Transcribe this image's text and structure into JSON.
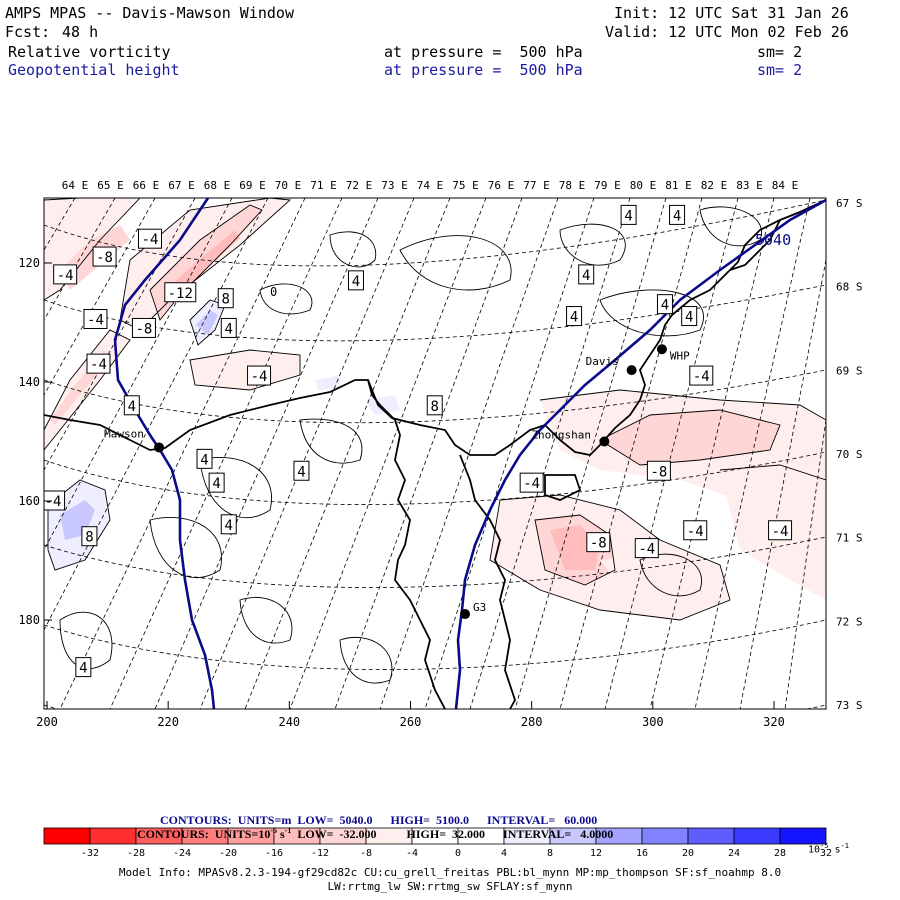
{
  "header": {
    "title": "AMPS MPAS -- Davis-Mawson Window",
    "fcst_label": "Fcst:",
    "fcst_value": "48 h",
    "init": "Init: 12 UTC Sat 31 Jan 26",
    "valid": "Valid: 12 UTC Mon 02 Feb 26",
    "field1": "Relative vorticity",
    "field2": "Geopotential height",
    "pressure1": "at pressure =  500 hPa",
    "pressure2": "at pressure =  500 hPa",
    "sm1": "sm= 2",
    "sm2": "sm= 2"
  },
  "map": {
    "x_ticks": [
      "200",
      "220",
      "240",
      "260",
      "280",
      "300",
      "320"
    ],
    "x_tick_values": [
      200,
      220,
      240,
      260,
      280,
      300,
      320
    ],
    "y_ticks": [
      "120",
      "140",
      "160",
      "180"
    ],
    "y_tick_values": [
      120,
      140,
      160,
      180
    ],
    "lon_labels": [
      "64 E",
      "65 E",
      "66 E",
      "67 E",
      "68 E",
      "69 E",
      "70 E",
      "71 E",
      "72 E",
      "73 E",
      "74 E",
      "75 E",
      "76 E",
      "77 E",
      "78 E",
      "79 E",
      "80 E",
      "81 E",
      "82 E",
      "83 E",
      "84 E"
    ],
    "lat_labels": [
      "67 S",
      "68 S",
      "69 S",
      "70 S",
      "71 S",
      "72 S",
      "73 S"
    ],
    "stations": [
      {
        "name": "Mawson",
        "x": 218.5,
        "y": 151
      },
      {
        "name": "Davis",
        "x": 296.5,
        "y": 138
      },
      {
        "name": "WHP",
        "x": 301.5,
        "y": 134.5
      },
      {
        "name": "Zhongshan",
        "x": 292,
        "y": 150
      },
      {
        "name": "G3",
        "x": 269,
        "y": 179
      }
    ],
    "height_label": "5040",
    "vorticity_labels": [
      {
        "t": "-4",
        "x": 203,
        "y": 122
      },
      {
        "t": "-8",
        "x": 209.5,
        "y": 119
      },
      {
        "t": "-4",
        "x": 217,
        "y": 116
      },
      {
        "t": "-12",
        "x": 222,
        "y": 125
      },
      {
        "t": "8",
        "x": 229.5,
        "y": 126
      },
      {
        "t": "-4",
        "x": 208,
        "y": 129.5
      },
      {
        "t": "-8",
        "x": 216,
        "y": 131
      },
      {
        "t": "4",
        "x": 230,
        "y": 131
      },
      {
        "t": "-4",
        "x": 208.5,
        "y": 137
      },
      {
        "t": "-4",
        "x": 235,
        "y": 139
      },
      {
        "t": "4",
        "x": 214,
        "y": 144
      },
      {
        "t": "8",
        "x": 264,
        "y": 144
      },
      {
        "t": "4",
        "x": 226,
        "y": 153
      },
      {
        "t": "4",
        "x": 228,
        "y": 157
      },
      {
        "t": "4",
        "x": 242,
        "y": 155
      },
      {
        "t": "4",
        "x": 230,
        "y": 164
      },
      {
        "t": "-4",
        "x": 201,
        "y": 160
      },
      {
        "t": "8",
        "x": 207,
        "y": 166
      },
      {
        "t": "4",
        "x": 206,
        "y": 188
      },
      {
        "t": "4",
        "x": 251,
        "y": 123
      },
      {
        "t": "-4",
        "x": 280,
        "y": 157
      },
      {
        "t": "4",
        "x": 287,
        "y": 129
      },
      {
        "t": "4",
        "x": 289,
        "y": 122
      },
      {
        "t": "4",
        "x": 296,
        "y": 112
      },
      {
        "t": "4",
        "x": 304,
        "y": 112
      },
      {
        "t": "4",
        "x": 302,
        "y": 127
      },
      {
        "t": "4",
        "x": 306,
        "y": 129
      },
      {
        "t": "-4",
        "x": 308,
        "y": 139
      },
      {
        "t": "-8",
        "x": 301,
        "y": 155
      },
      {
        "t": "-4",
        "x": 307,
        "y": 165
      },
      {
        "t": "-4",
        "x": 299,
        "y": 168
      },
      {
        "t": "-8",
        "x": 291,
        "y": 167
      },
      {
        "t": "-4",
        "x": 321,
        "y": 165
      }
    ]
  },
  "footer": {
    "line1_label": "CONTOURS:",
    "line1_units": "UNITS=m",
    "line1_low": "LOW=  5040.0",
    "line1_high": "HIGH=  5100.0",
    "line1_interval": "INTERVAL=   60.000",
    "line2_label": "CONTOURS:",
    "line2_units": "UNITS=10",
    "line2_units_exp": "-5",
    "line2_units_tail": "s",
    "line2_units_tail_exp": "-1",
    "line2_low": "LOW=  -32.000",
    "line2_high": "HIGH=  32.000",
    "line2_interval": "INTERVAL=   4.0000",
    "colorbar_labels": [
      "-32",
      "-28",
      "-24",
      "-20",
      "-16",
      "-12",
      "-8",
      "-4",
      "0",
      "4",
      "8",
      "12",
      "16",
      "20",
      "24",
      "28",
      "32"
    ],
    "colorbar_colors": [
      "#ff0000",
      "#ff2f2f",
      "#ff5e5e",
      "#ff7f7f",
      "#ff9f9f",
      "#ffbcbc",
      "#ffd6d6",
      "#ffeeee",
      "#ffffff",
      "#ffffff",
      "#eeeeff",
      "#c8c8ff",
      "#a4a4ff",
      "#8282ff",
      "#5e5eff",
      "#3a3aff",
      "#1515ff"
    ],
    "colorbar_unit": "10",
    "colorbar_unit_exp": "-5",
    "colorbar_unit_tail": "s",
    "colorbar_unit_tail_exp": "-1",
    "model_info1": "Model Info: MPASv8.2.3-194-gf29cd82c CU:cu_grell_freitas PBL:bl_mynn MP:mp_thompson SF:sf_noahmp 8.0",
    "model_info2": "LW:rrtmg_lw SW:rrtmg_sw SFLAY:sf_mynn"
  }
}
